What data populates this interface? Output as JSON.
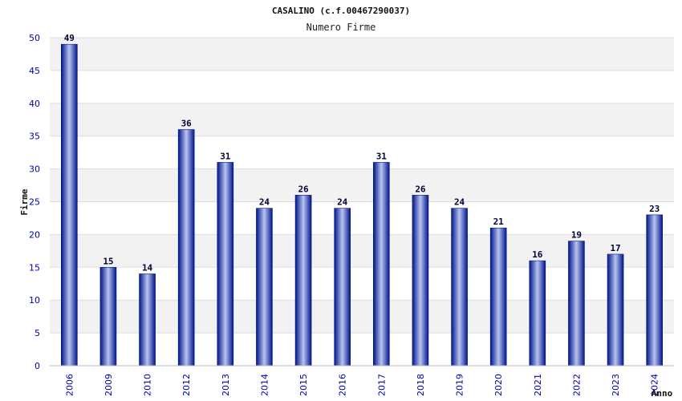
{
  "chart_data": {
    "type": "bar",
    "title": "CASALINO (c.f.00467290037)",
    "subtitle": "Numero Firme",
    "xlabel": "Anno",
    "ylabel": "Firme",
    "ylim": [
      0,
      50
    ],
    "yticks": [
      0,
      5,
      10,
      15,
      20,
      25,
      30,
      35,
      40,
      45,
      50
    ],
    "grid": true,
    "categories": [
      "2006",
      "2009",
      "2010",
      "2012",
      "2013",
      "2014",
      "2015",
      "2016",
      "2017",
      "2018",
      "2019",
      "2020",
      "2021",
      "2022",
      "2023",
      "2024"
    ],
    "values": [
      49,
      15,
      14,
      36,
      31,
      24,
      26,
      24,
      31,
      26,
      24,
      21,
      16,
      19,
      17,
      23
    ],
    "colors": {
      "bar_dark": "#00158a",
      "bar_light": "#b8c4f0",
      "band": "#f2f2f2",
      "grid": "#dddddd",
      "tick_text": "#0000aa"
    }
  }
}
